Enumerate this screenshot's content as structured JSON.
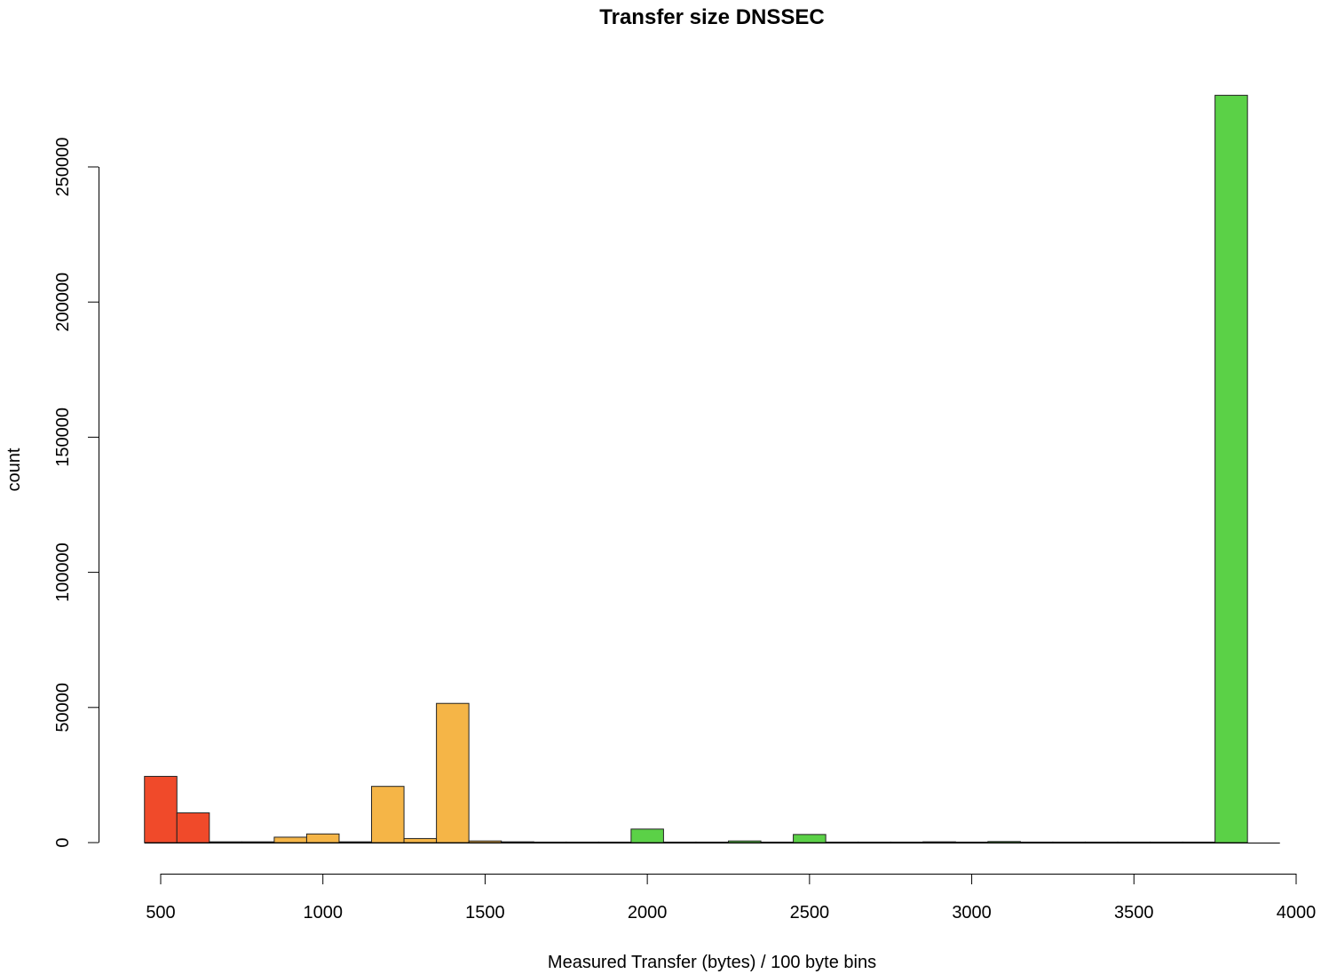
{
  "chart_data": {
    "type": "bar",
    "title": "Transfer size DNSSEC",
    "xlabel": "Measured Transfer (bytes) / 100 byte bins",
    "ylabel": "count",
    "xlim": [
      450,
      3950
    ],
    "ylim": [
      0,
      280000
    ],
    "x_ticks": [
      500,
      1000,
      1500,
      2000,
      2500,
      3000,
      3500,
      4000
    ],
    "y_ticks": [
      0,
      50000,
      100000,
      150000,
      200000,
      250000
    ],
    "bin_width": 100,
    "colors": {
      "red": "#f04a2a",
      "orange": "#f5b547",
      "green": "#5bd147"
    },
    "bins": [
      {
        "start": 450,
        "value": 24500,
        "color": "red"
      },
      {
        "start": 550,
        "value": 11000,
        "color": "red"
      },
      {
        "start": 650,
        "value": 300,
        "color": "orange"
      },
      {
        "start": 750,
        "value": 300,
        "color": "orange"
      },
      {
        "start": 850,
        "value": 2000,
        "color": "orange"
      },
      {
        "start": 950,
        "value": 3200,
        "color": "orange"
      },
      {
        "start": 1050,
        "value": 300,
        "color": "orange"
      },
      {
        "start": 1150,
        "value": 20800,
        "color": "orange"
      },
      {
        "start": 1250,
        "value": 1500,
        "color": "orange"
      },
      {
        "start": 1350,
        "value": 51500,
        "color": "orange"
      },
      {
        "start": 1450,
        "value": 600,
        "color": "orange"
      },
      {
        "start": 1550,
        "value": 300,
        "color": "orange"
      },
      {
        "start": 1650,
        "value": 200,
        "color": "orange"
      },
      {
        "start": 1750,
        "value": 200,
        "color": "green"
      },
      {
        "start": 1850,
        "value": 200,
        "color": "green"
      },
      {
        "start": 1950,
        "value": 5000,
        "color": "green"
      },
      {
        "start": 2050,
        "value": 200,
        "color": "green"
      },
      {
        "start": 2150,
        "value": 200,
        "color": "green"
      },
      {
        "start": 2250,
        "value": 600,
        "color": "green"
      },
      {
        "start": 2350,
        "value": 200,
        "color": "green"
      },
      {
        "start": 2450,
        "value": 3000,
        "color": "green"
      },
      {
        "start": 2550,
        "value": 200,
        "color": "green"
      },
      {
        "start": 2650,
        "value": 200,
        "color": "green"
      },
      {
        "start": 2750,
        "value": 200,
        "color": "green"
      },
      {
        "start": 2850,
        "value": 300,
        "color": "green"
      },
      {
        "start": 2950,
        "value": 200,
        "color": "green"
      },
      {
        "start": 3050,
        "value": 400,
        "color": "green"
      },
      {
        "start": 3150,
        "value": 200,
        "color": "green"
      },
      {
        "start": 3250,
        "value": 200,
        "color": "green"
      },
      {
        "start": 3350,
        "value": 200,
        "color": "green"
      },
      {
        "start": 3450,
        "value": 200,
        "color": "green"
      },
      {
        "start": 3550,
        "value": 200,
        "color": "green"
      },
      {
        "start": 3650,
        "value": 200,
        "color": "green"
      },
      {
        "start": 3750,
        "value": 276500,
        "color": "green"
      },
      {
        "start": 3850,
        "value": 0,
        "color": "green"
      }
    ]
  }
}
